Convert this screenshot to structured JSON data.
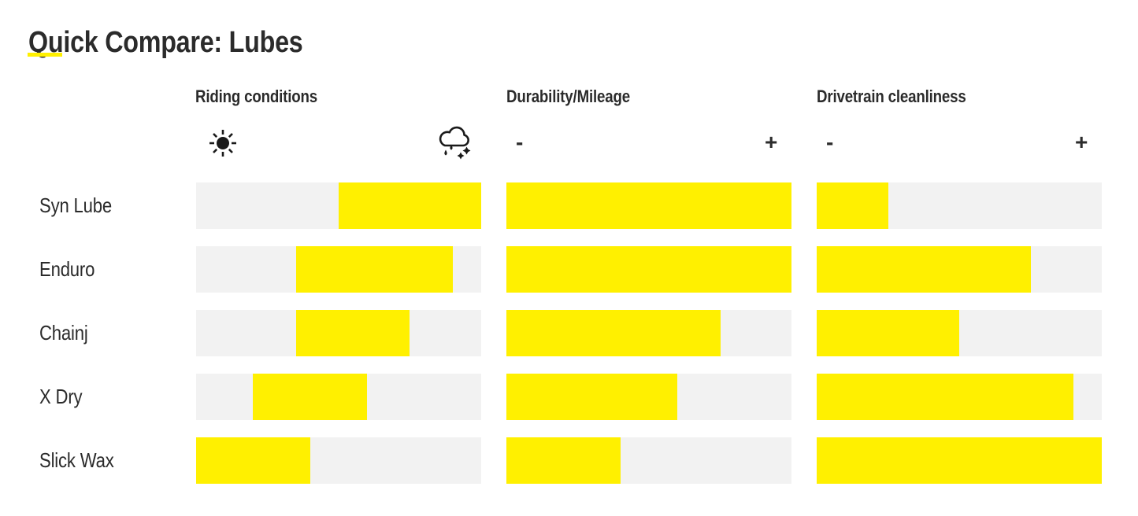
{
  "title": "Quick Compare: Lubes",
  "colors": {
    "accent_yellow": "#FFF000",
    "track_gray": "#F2F2F2",
    "text_dark": "#2B2B2B"
  },
  "columns": [
    {
      "key": "riding",
      "label": "Riding conditions",
      "scale_left_icon": "sun-icon",
      "scale_right_icon": "rain-snow-cloud-icon"
    },
    {
      "key": "durability",
      "label": "Durability/Mileage",
      "scale_left": "-",
      "scale_right": "+"
    },
    {
      "key": "cleanliness",
      "label": "Drivetrain cleanliness",
      "scale_left": "-",
      "scale_right": "+"
    }
  ],
  "chart_data": {
    "type": "bar",
    "title": "Quick Compare: Lubes",
    "categories": [
      "Syn Lube",
      "Enduro",
      "Chainj",
      "X Dry",
      "Slick Wax"
    ],
    "series": [
      {
        "key": "riding",
        "name": "Riding conditions",
        "scale": "sun (dry) to rain/snow (wet)",
        "ranges": [
          [
            0.5,
            1.0
          ],
          [
            0.35,
            0.9
          ],
          [
            0.35,
            0.75
          ],
          [
            0.2,
            0.6
          ],
          [
            0.0,
            0.4
          ]
        ]
      },
      {
        "key": "durability",
        "name": "Durability/Mileage",
        "scale": "- to +",
        "values": [
          1.0,
          1.0,
          0.75,
          0.6,
          0.4
        ]
      },
      {
        "key": "cleanliness",
        "name": "Drivetrain cleanliness",
        "scale": "- to +",
        "values": [
          0.25,
          0.75,
          0.5,
          0.9,
          1.0
        ]
      }
    ],
    "value_range": [
      0,
      1
    ],
    "legend_position": "none",
    "grid": false
  }
}
